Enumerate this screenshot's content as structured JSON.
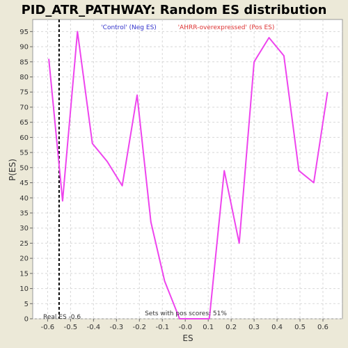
{
  "chart_data": {
    "type": "line",
    "title": "PID_ATR_PATHWAY: Random ES distribution",
    "xlabel": "ES",
    "ylabel": "P(ES)",
    "xlim": [
      -0.665,
      0.685
    ],
    "ylim": [
      0,
      99
    ],
    "x_ticks": [
      -0.6,
      -0.5,
      -0.4,
      -0.3,
      -0.2,
      -0.1,
      0.0,
      0.1,
      0.2,
      0.3,
      0.4,
      0.5,
      0.6
    ],
    "x_tick_labels": [
      "-0.6",
      "-0.5",
      "-0.4",
      "-0.3",
      "-0.2",
      "-0.1",
      "-0.0",
      "0.1",
      "0.2",
      "0.3",
      "0.4",
      "0.5",
      "0.6"
    ],
    "y_ticks": [
      0,
      5,
      10,
      15,
      20,
      25,
      30,
      35,
      40,
      45,
      50,
      55,
      60,
      65,
      70,
      75,
      80,
      85,
      90,
      95
    ],
    "grid": true,
    "legend": [
      {
        "label": "'Control' (Neg ES)",
        "color": "#3333cc"
      },
      {
        "label": "'AHRR-overexpressed' (Pos ES)",
        "color": "#dd3333"
      }
    ],
    "series": [
      {
        "color": "#ee44ee",
        "x": [
          -0.595,
          -0.535,
          -0.47,
          -0.405,
          -0.34,
          -0.275,
          -0.21,
          -0.15,
          -0.09,
          -0.025,
          0.04,
          0.105,
          0.17,
          0.235,
          0.3,
          0.365,
          0.43,
          0.495,
          0.56,
          0.62
        ],
        "y": [
          86,
          39,
          95,
          58,
          52,
          44,
          74,
          32,
          12.5,
          0,
          0,
          0,
          49,
          25,
          85,
          93,
          87,
          49,
          45,
          75
        ]
      }
    ],
    "real_es": -0.55,
    "real_es_label": "Real ES -0.6",
    "pos_scores_label": "Sets with pos scores: 51%"
  }
}
